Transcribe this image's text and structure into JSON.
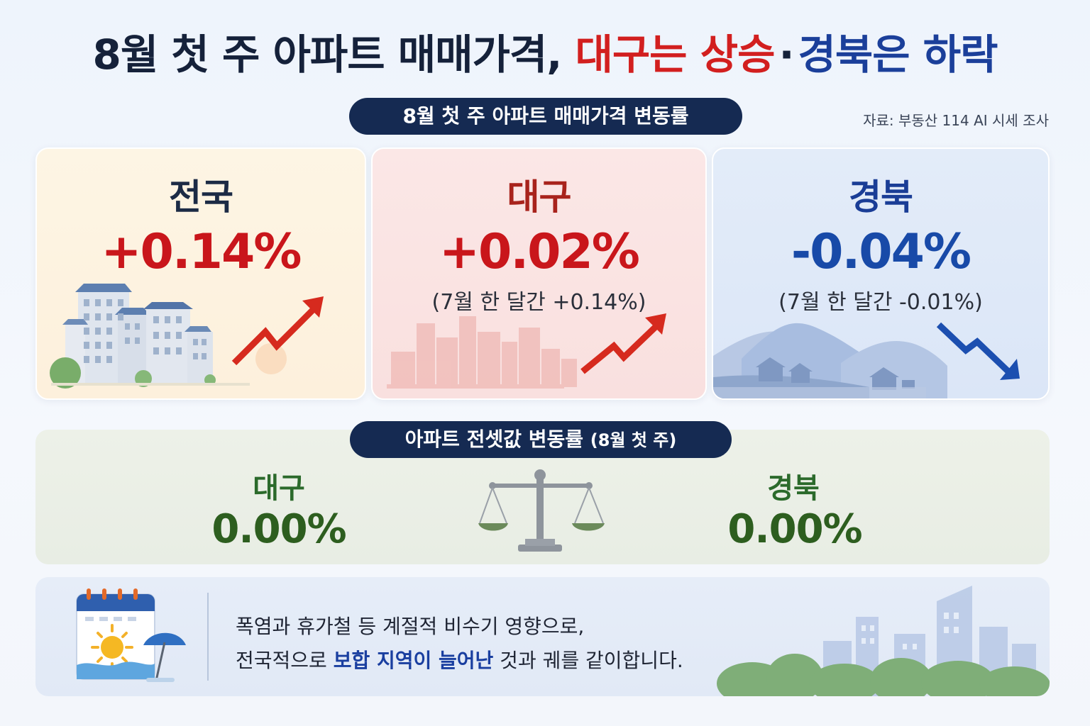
{
  "title": {
    "part1": "8월 첫 주 아파트 매매가격,",
    "part2": "대구는 상승",
    "separator": "·",
    "part3": "경북은 하락"
  },
  "sale_section": {
    "label": "8월 첫 주 아파트 매매가격 변동률",
    "source": "자료: 부동산 114 AI 시세 조사"
  },
  "cards": [
    {
      "region": "전국",
      "value": "+0.14%",
      "sub": "",
      "trend": "up"
    },
    {
      "region": "대구",
      "value": "+0.02%",
      "sub": "(7월 한 달간 +0.14%)",
      "trend": "up"
    },
    {
      "region": "경북",
      "value": "-0.04%",
      "sub": "(7월 한 달간 -0.01%)",
      "trend": "down"
    }
  ],
  "jeonse": {
    "label": "아파트 전셋값 변동률",
    "label_suffix": "(8월 첫 주)",
    "items": [
      {
        "region": "대구",
        "value": "0.00%"
      },
      {
        "region": "경북",
        "value": "0.00%"
      }
    ]
  },
  "note": {
    "line1": "폭염과 휴가철 등 계절적 비수기 영향으로,",
    "line2_before": "전국적으로 ",
    "line2_highlight": "보합 지역이 늘어난",
    "line2_after": " 것과 궤를 같이합니다."
  },
  "colors": {
    "rise": "#c9161b",
    "fall": "#1a3d96",
    "flat": "#2d5e1f",
    "pill": "#152a52"
  },
  "icons": [
    "up-trend-arrow-icon",
    "down-trend-arrow-icon",
    "scale-icon",
    "calendar-sun-icon",
    "beach-umbrella-icon"
  ]
}
